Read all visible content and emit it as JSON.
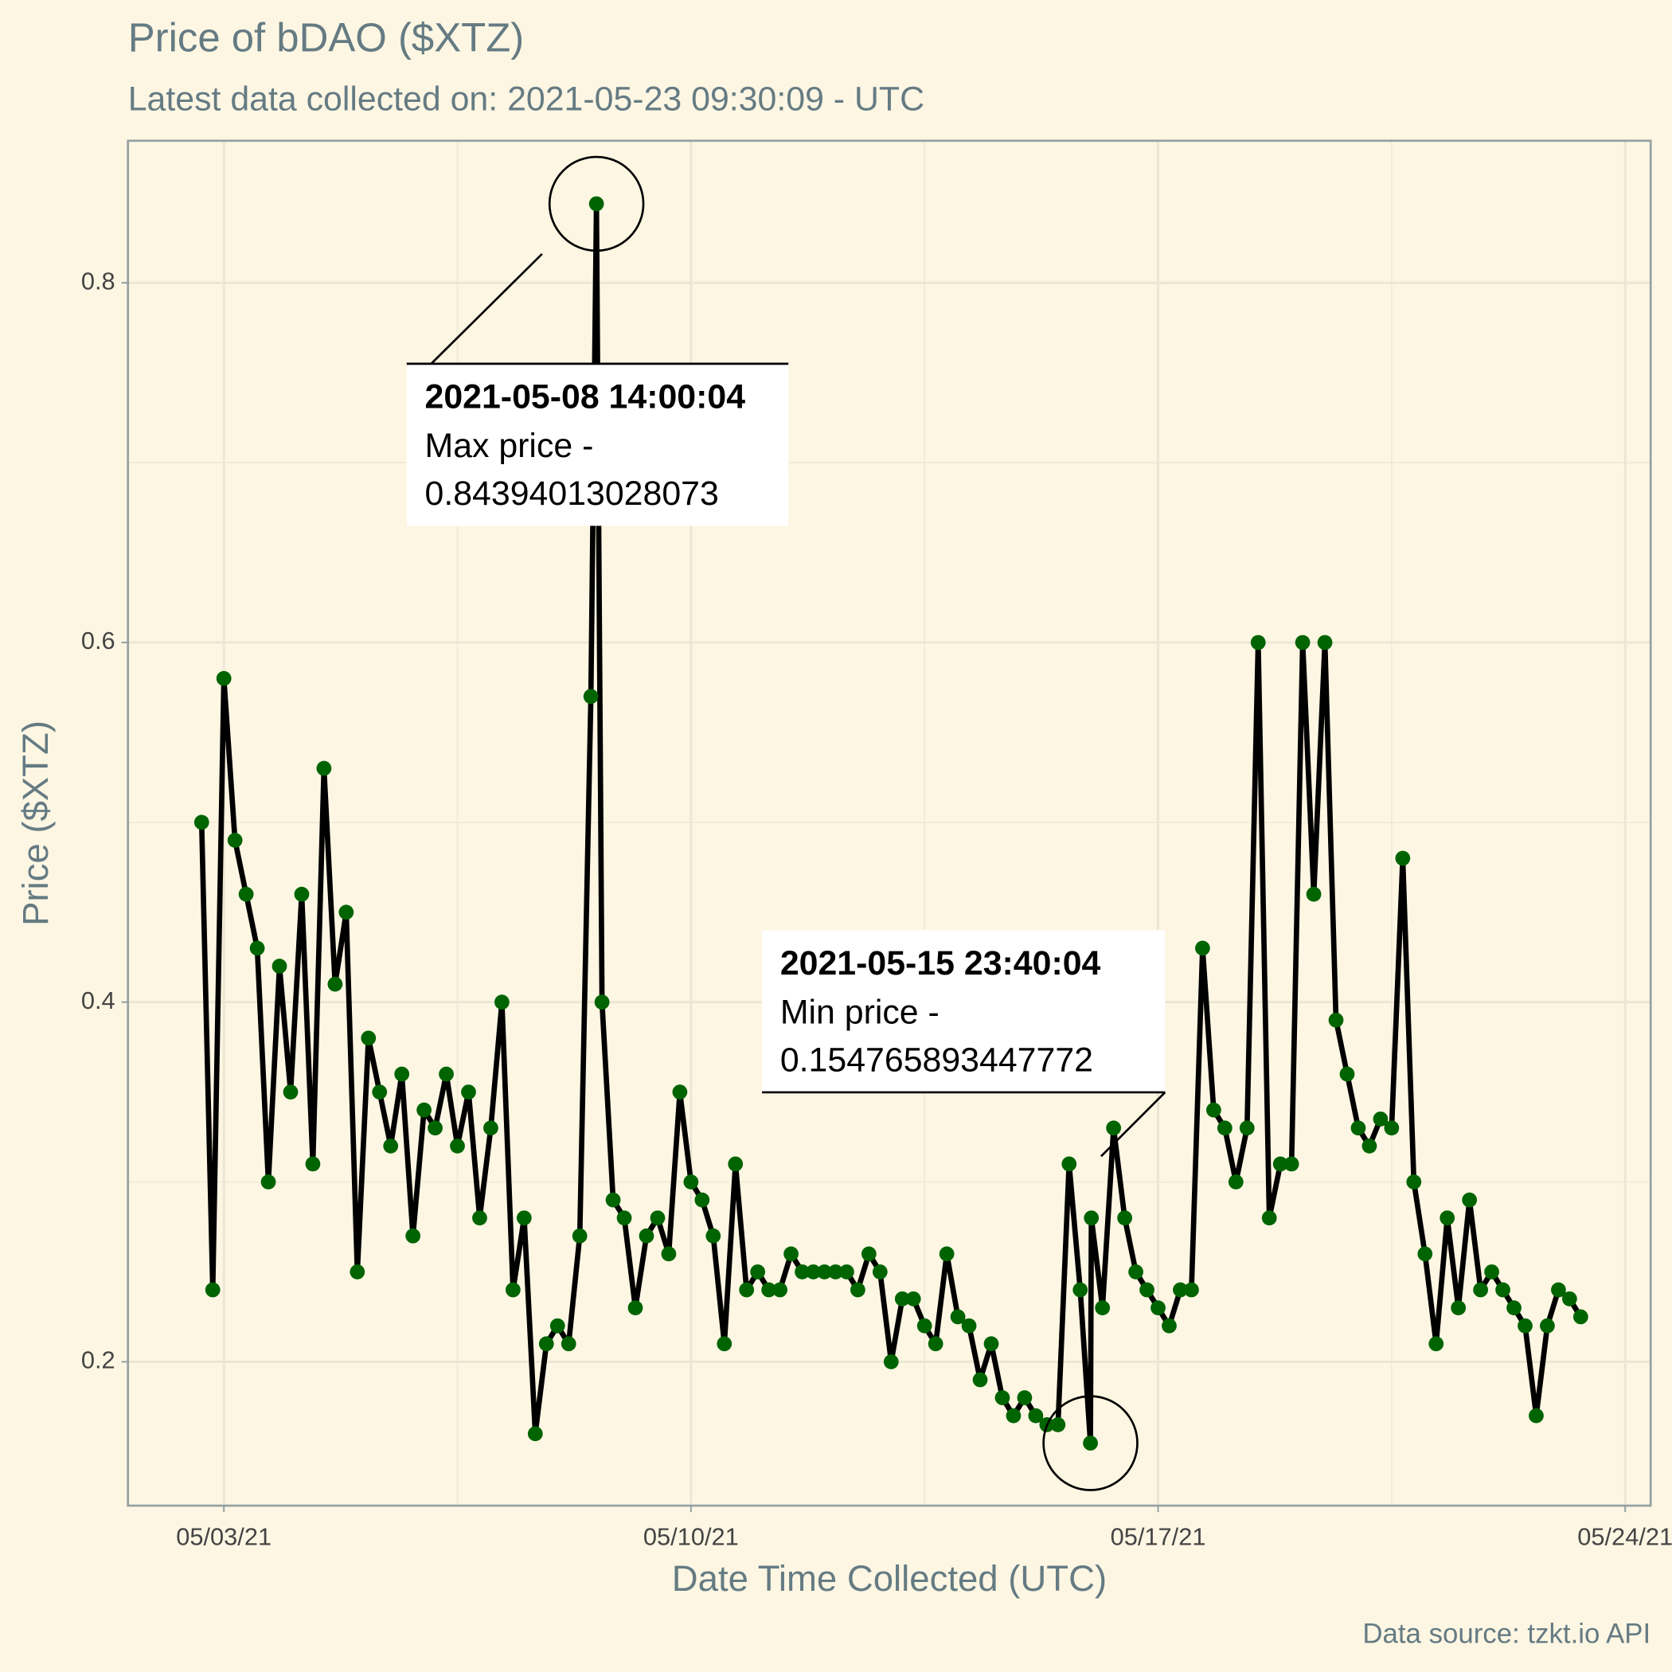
{
  "chart_data": {
    "type": "line",
    "title": "Price of bDAO ($XTZ)",
    "subtitle": "Latest data collected on: 2021-05-23 09:30:09  - UTC",
    "x_label": "Date Time Collected (UTC)",
    "y_label": "Price ($XTZ)",
    "caption": "Data source: tzkt.io API",
    "xlim": [
      "2021-05-01 13:30",
      "2021-05-24 09:10"
    ],
    "xticks": [
      {
        "value": "2021-05-03",
        "label": "05/03/21"
      },
      {
        "value": "2021-05-10",
        "label": "05/10/21"
      },
      {
        "value": "2021-05-17",
        "label": "05/17/21"
      },
      {
        "value": "2021-05-24",
        "label": "05/24/21"
      }
    ],
    "minor_xticks": [
      "2021-05-06 12:00",
      "2021-05-13 12:00",
      "2021-05-20 12:00"
    ],
    "ylim": [
      0.12,
      0.879
    ],
    "yticks": [
      0.2,
      0.4,
      0.6,
      0.8
    ],
    "minor_yticks": [
      0.3,
      0.5,
      0.7
    ],
    "grid": true,
    "x": [
      "2021-05-02 16:00",
      "2021-05-02 20:00",
      "2021-05-03 00:00",
      "2021-05-03 04:00",
      "2021-05-03 08:00",
      "2021-05-03 12:00",
      "2021-05-03 16:00",
      "2021-05-03 20:00",
      "2021-05-04 00:00",
      "2021-05-04 04:00",
      "2021-05-04 08:00",
      "2021-05-04 12:00",
      "2021-05-04 16:00",
      "2021-05-04 20:00",
      "2021-05-05 00:00",
      "2021-05-05 04:00",
      "2021-05-05 08:00",
      "2021-05-05 12:00",
      "2021-05-05 16:00",
      "2021-05-05 20:00",
      "2021-05-06 00:00",
      "2021-05-06 04:00",
      "2021-05-06 08:00",
      "2021-05-06 12:00",
      "2021-05-06 16:00",
      "2021-05-06 20:00",
      "2021-05-07 00:00",
      "2021-05-07 04:00",
      "2021-05-07 08:00",
      "2021-05-07 12:00",
      "2021-05-07 16:00",
      "2021-05-07 20:00",
      "2021-05-08 00:00",
      "2021-05-08 04:00",
      "2021-05-08 08:00",
      "2021-05-08 12:00",
      "2021-05-08 14:00:04",
      "2021-05-08 16:00",
      "2021-05-08 20:00",
      "2021-05-09 00:00",
      "2021-05-09 04:00",
      "2021-05-09 08:00",
      "2021-05-09 12:00",
      "2021-05-09 16:00",
      "2021-05-09 20:00",
      "2021-05-10 00:00",
      "2021-05-10 04:00",
      "2021-05-10 08:00",
      "2021-05-10 12:00",
      "2021-05-10 16:00",
      "2021-05-10 20:00",
      "2021-05-11 00:00",
      "2021-05-11 04:00",
      "2021-05-11 08:00",
      "2021-05-11 12:00",
      "2021-05-11 16:00",
      "2021-05-11 20:00",
      "2021-05-12 00:00",
      "2021-05-12 04:00",
      "2021-05-12 08:00",
      "2021-05-12 12:00",
      "2021-05-12 16:00",
      "2021-05-12 20:00",
      "2021-05-13 00:00",
      "2021-05-13 04:00",
      "2021-05-13 08:00",
      "2021-05-13 12:00",
      "2021-05-13 16:00",
      "2021-05-13 20:00",
      "2021-05-14 00:00",
      "2021-05-14 04:00",
      "2021-05-14 08:00",
      "2021-05-14 12:00",
      "2021-05-14 16:00",
      "2021-05-14 20:00",
      "2021-05-15 00:00",
      "2021-05-15 04:00",
      "2021-05-15 08:00",
      "2021-05-15 12:00",
      "2021-05-15 16:00",
      "2021-05-15 20:00",
      "2021-05-15 23:40:04",
      "2021-05-16 00:00",
      "2021-05-16 04:00",
      "2021-05-16 08:00",
      "2021-05-16 12:00",
      "2021-05-16 16:00",
      "2021-05-16 20:00",
      "2021-05-17 00:00",
      "2021-05-17 04:00",
      "2021-05-17 08:00",
      "2021-05-17 12:00",
      "2021-05-17 16:00",
      "2021-05-17 20:00",
      "2021-05-18 00:00",
      "2021-05-18 04:00",
      "2021-05-18 08:00",
      "2021-05-18 12:00",
      "2021-05-18 16:00",
      "2021-05-18 20:00",
      "2021-05-19 00:00",
      "2021-05-19 04:00",
      "2021-05-19 08:00",
      "2021-05-19 12:00",
      "2021-05-19 16:00",
      "2021-05-19 20:00",
      "2021-05-20 00:00",
      "2021-05-20 04:00",
      "2021-05-20 08:00",
      "2021-05-20 12:00",
      "2021-05-20 16:00",
      "2021-05-20 20:00",
      "2021-05-21 00:00",
      "2021-05-21 04:00",
      "2021-05-21 08:00",
      "2021-05-21 12:00",
      "2021-05-21 16:00",
      "2021-05-21 20:00",
      "2021-05-22 00:00",
      "2021-05-22 04:00",
      "2021-05-22 08:00",
      "2021-05-22 12:00",
      "2021-05-22 16:00",
      "2021-05-22 20:00",
      "2021-05-23 00:00",
      "2021-05-23 04:00",
      "2021-05-23 08:00"
    ],
    "series": [
      {
        "line_color": "#000000",
        "color": "#006400",
        "values": [
          0.5,
          0.24,
          0.58,
          0.49,
          0.46,
          0.43,
          0.3,
          0.42,
          0.35,
          0.46,
          0.31,
          0.53,
          0.41,
          0.45,
          0.25,
          0.38,
          0.35,
          0.32,
          0.36,
          0.27,
          0.34,
          0.33,
          0.36,
          0.32,
          0.35,
          0.28,
          0.33,
          0.4,
          0.24,
          0.28,
          0.16,
          0.21,
          0.22,
          0.21,
          0.27,
          0.57,
          0.84394013028073,
          0.4,
          0.29,
          0.28,
          0.23,
          0.27,
          0.28,
          0.26,
          0.35,
          0.3,
          0.29,
          0.27,
          0.21,
          0.31,
          0.24,
          0.25,
          0.24,
          0.24,
          0.26,
          0.25,
          0.25,
          0.25,
          0.25,
          0.25,
          0.24,
          0.26,
          0.25,
          0.2,
          0.235,
          0.235,
          0.22,
          0.21,
          0.26,
          0.225,
          0.22,
          0.19,
          0.21,
          0.18,
          0.17,
          0.18,
          0.17,
          0.165,
          0.165,
          0.31,
          0.24,
          0.154765893447772,
          0.28,
          0.23,
          0.33,
          0.28,
          0.25,
          0.24,
          0.23,
          0.22,
          0.24,
          0.24,
          0.43,
          0.34,
          0.33,
          0.3,
          0.33,
          0.6,
          0.28,
          0.31,
          0.31,
          0.6,
          0.46,
          0.6,
          0.39,
          0.36,
          0.33,
          0.32,
          0.335,
          0.33,
          0.48,
          0.3,
          0.26,
          0.21,
          0.28,
          0.23,
          0.29,
          0.24,
          0.25,
          0.24,
          0.23,
          0.22,
          0.17,
          0.22,
          0.24,
          0.235,
          0.225
        ]
      }
    ],
    "annotations": [
      {
        "label": "2021-05-08 14:00:04",
        "text": "Max price -",
        "value": 0.84394013028073
      },
      {
        "label": "2021-05-15 23:40:04",
        "text": "Min price -",
        "value": 0.154765893447772
      }
    ]
  }
}
